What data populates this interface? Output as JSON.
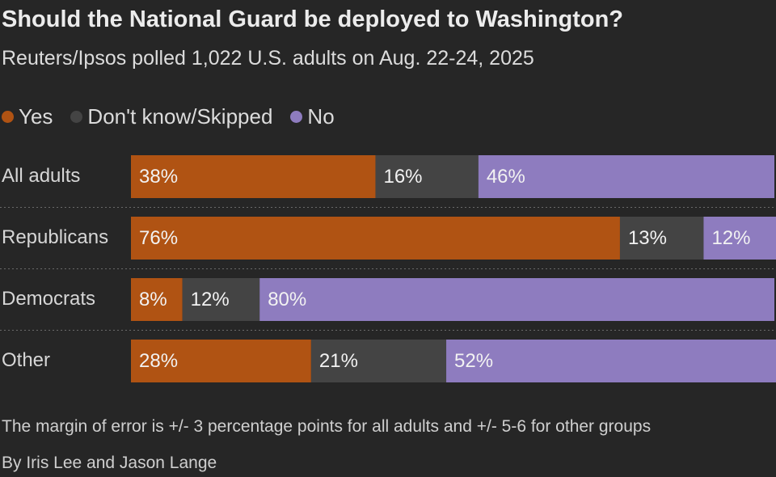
{
  "chart_data": {
    "type": "bar",
    "orientation": "horizontal",
    "stacked": true,
    "title": "Should the National Guard be deployed to Washington?",
    "subtitle": "Reuters/Ipsos polled 1,022 U.S. adults on Aug. 22-24, 2025",
    "categories": [
      "All adults",
      "Republicans",
      "Democrats",
      "Other"
    ],
    "series": [
      {
        "name": "Yes",
        "color": "#b05313",
        "values": [
          38,
          76,
          8,
          28
        ]
      },
      {
        "name": "Don't know/Skipped",
        "color": "#444444",
        "values": [
          16,
          13,
          12,
          21
        ]
      },
      {
        "name": "No",
        "color": "#8e7cbf",
        "values": [
          46,
          12,
          80,
          52
        ]
      }
    ],
    "value_suffix": "%",
    "xlim": [
      0,
      100
    ],
    "legend_position": "top-left"
  },
  "footnote": "The margin of error is +/- 3 percentage points for all adults and +/- 5-6 for other groups",
  "byline": "By Iris Lee and Jason Lange"
}
